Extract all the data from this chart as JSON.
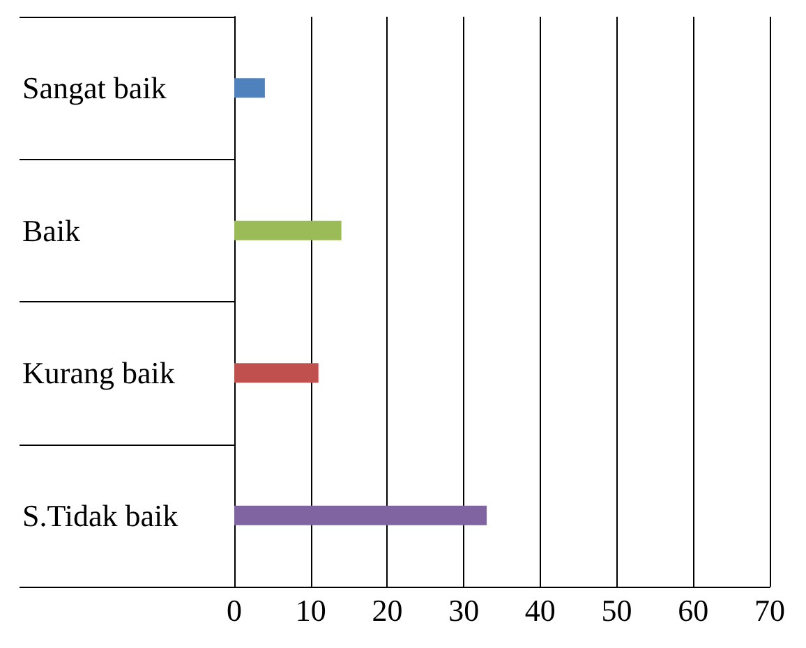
{
  "chart_data": {
    "type": "bar",
    "orientation": "horizontal",
    "categories": [
      "Sangat baik",
      "Baik",
      "Kurang baik",
      "S.Tidak baik"
    ],
    "values": [
      4,
      14,
      11,
      33
    ],
    "colors": [
      "#4f81bd",
      "#9bbb59",
      "#c0504d",
      "#8064a2"
    ],
    "xlim": [
      0,
      70
    ],
    "xticks": [
      0,
      10,
      20,
      30,
      40,
      50,
      60,
      70
    ],
    "grid": "x"
  }
}
